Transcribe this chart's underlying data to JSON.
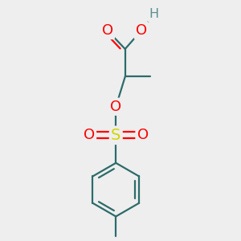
{
  "background_color": "#eeeeee",
  "bond_color": "#2d6b6b",
  "oxygen_color": "#ff0000",
  "sulfur_color": "#d4d400",
  "hydrogen_color": "#5a9090",
  "lw": 1.6,
  "figsize": [
    3.0,
    3.0
  ],
  "dpi": 100,
  "xlim": [
    -1.4,
    1.4
  ],
  "ylim": [
    -3.0,
    2.2
  ]
}
